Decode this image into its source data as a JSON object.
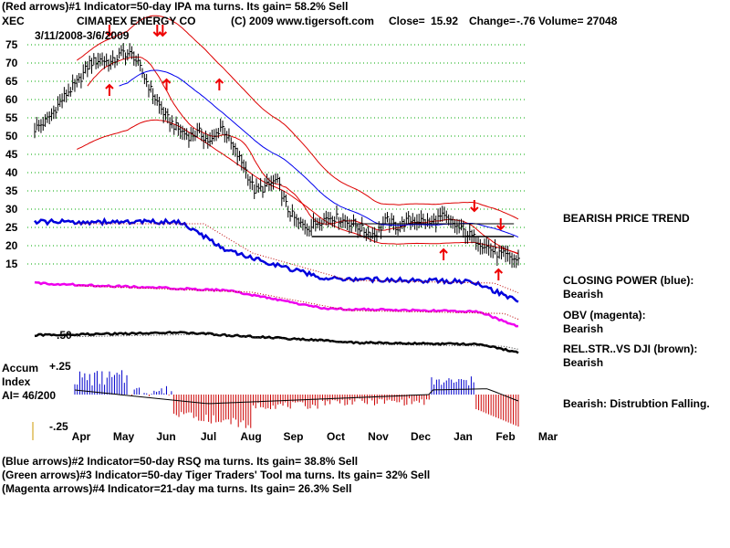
{
  "header": {
    "line1": "(Red arrows)#1 Indicator=50-day IPA ma turns. Its gain= 58.2% Sell",
    "ticker": "XEC",
    "company": "CIMAREX ENERGY CO",
    "copyright": "(C) 2009 www.tigersoft.com",
    "close_label": "Close=",
    "close_value": "15.92",
    "change_label": "Change=",
    "change_value": "-.76",
    "volume_label": "Volume=",
    "volume_value": "27048",
    "date_range": "3/11/2008-3/6/2009"
  },
  "side_labels": {
    "trend": "BEARISH PRICE TREND",
    "closing_power_title": "CLOSING POWER (blue):",
    "closing_power_value": "Bearish",
    "obv_title": "OBV (magenta):",
    "obv_value": "Bearish",
    "relstr_title": "REL.STR..VS DJI (brown):",
    "relstr_value": "Bearish",
    "accum_summary": "Bearish: Distrubtion Falling."
  },
  "accum_panel": {
    "title_line1": "Accum",
    "title_line2": "Index",
    "ai_text": "AI= 46/200",
    "top_label": "+.25",
    "bottom_label": "-.25"
  },
  "relstr_marker": ".50",
  "footer": {
    "line2": "(Blue arrows)#2 Indicator=50-day RSQ ma turns. Its gain= 38.8% Sell",
    "line3": "(Green arrows)#3 Indicator=50-day Tiger Traders' Tool ma turns. Its gain= 32% Sell",
    "line4": "(Magenta arrows)#4 Indicator=21-day ma turns. Its gain= 26.3% Sell"
  },
  "colors": {
    "price": "#000000",
    "band": "#dd0000",
    "ma": "#0000ee",
    "closing_power": "#0000dd",
    "obv": "#ee00ee",
    "relstr": "#000000",
    "accum_positive": "#0000cc",
    "accum_negative": "#cc0000",
    "grid": "#00aa00",
    "arrow_red": "#ee0000"
  },
  "chart_data": {
    "type": "line",
    "y_ticks": [
      75,
      70,
      65,
      60,
      55,
      50,
      45,
      40,
      35,
      30,
      25,
      20,
      15
    ],
    "x_months": [
      "Apr",
      "May",
      "Jun",
      "Jul",
      "Aug",
      "Sep",
      "Oct",
      "Nov",
      "Dec",
      "Jan",
      "Feb",
      "Mar"
    ],
    "ylim": [
      15,
      75
    ],
    "grid": "dotted horizontal",
    "price_series": {
      "x": [
        0.0,
        0.25,
        0.5,
        0.75,
        1.0,
        1.25,
        1.5,
        1.75,
        2.0,
        2.25,
        2.5,
        2.75,
        3.0,
        3.25,
        3.5,
        3.75,
        4.0,
        4.25,
        4.5,
        4.75,
        5.0,
        5.25,
        5.5,
        5.75,
        6.0,
        6.25,
        6.5,
        6.75,
        7.0,
        7.25,
        7.5,
        7.75,
        8.0,
        8.25,
        8.5,
        8.75,
        9.0,
        9.25,
        9.5,
        9.75,
        10.0,
        10.25,
        10.5,
        10.75,
        11.0
      ],
      "close": [
        52,
        54,
        58,
        62,
        65,
        70,
        71,
        70,
        73,
        72,
        66,
        60,
        55,
        52,
        50,
        51,
        48,
        53,
        47,
        42,
        35,
        36,
        38,
        30,
        26,
        25,
        27,
        28,
        27,
        26,
        24,
        23,
        27,
        25,
        27,
        27,
        26,
        28,
        26,
        24,
        22,
        20,
        18,
        17,
        15.92
      ]
    },
    "annotations": [
      {
        "type": "arrow-down",
        "color": "red",
        "x": 1.7,
        "y": 79
      },
      {
        "type": "arrow-down-double",
        "color": "red",
        "x": 2.85,
        "y": 79
      },
      {
        "type": "arrow-up",
        "color": "red",
        "x": 1.7,
        "y": 62.5
      },
      {
        "type": "arrow-up",
        "color": "red",
        "x": 3.0,
        "y": 64
      },
      {
        "type": "arrow-up",
        "color": "red",
        "x": 4.2,
        "y": 64
      },
      {
        "type": "arrow-up",
        "color": "red",
        "x": 9.3,
        "y": 17.5
      },
      {
        "type": "arrow-down",
        "color": "red",
        "x": 10.0,
        "y": 31
      },
      {
        "type": "arrow-down",
        "color": "red",
        "x": 10.6,
        "y": 26
      },
      {
        "type": "arrow-up",
        "color": "red",
        "x": 10.55,
        "y": 12
      }
    ]
  }
}
